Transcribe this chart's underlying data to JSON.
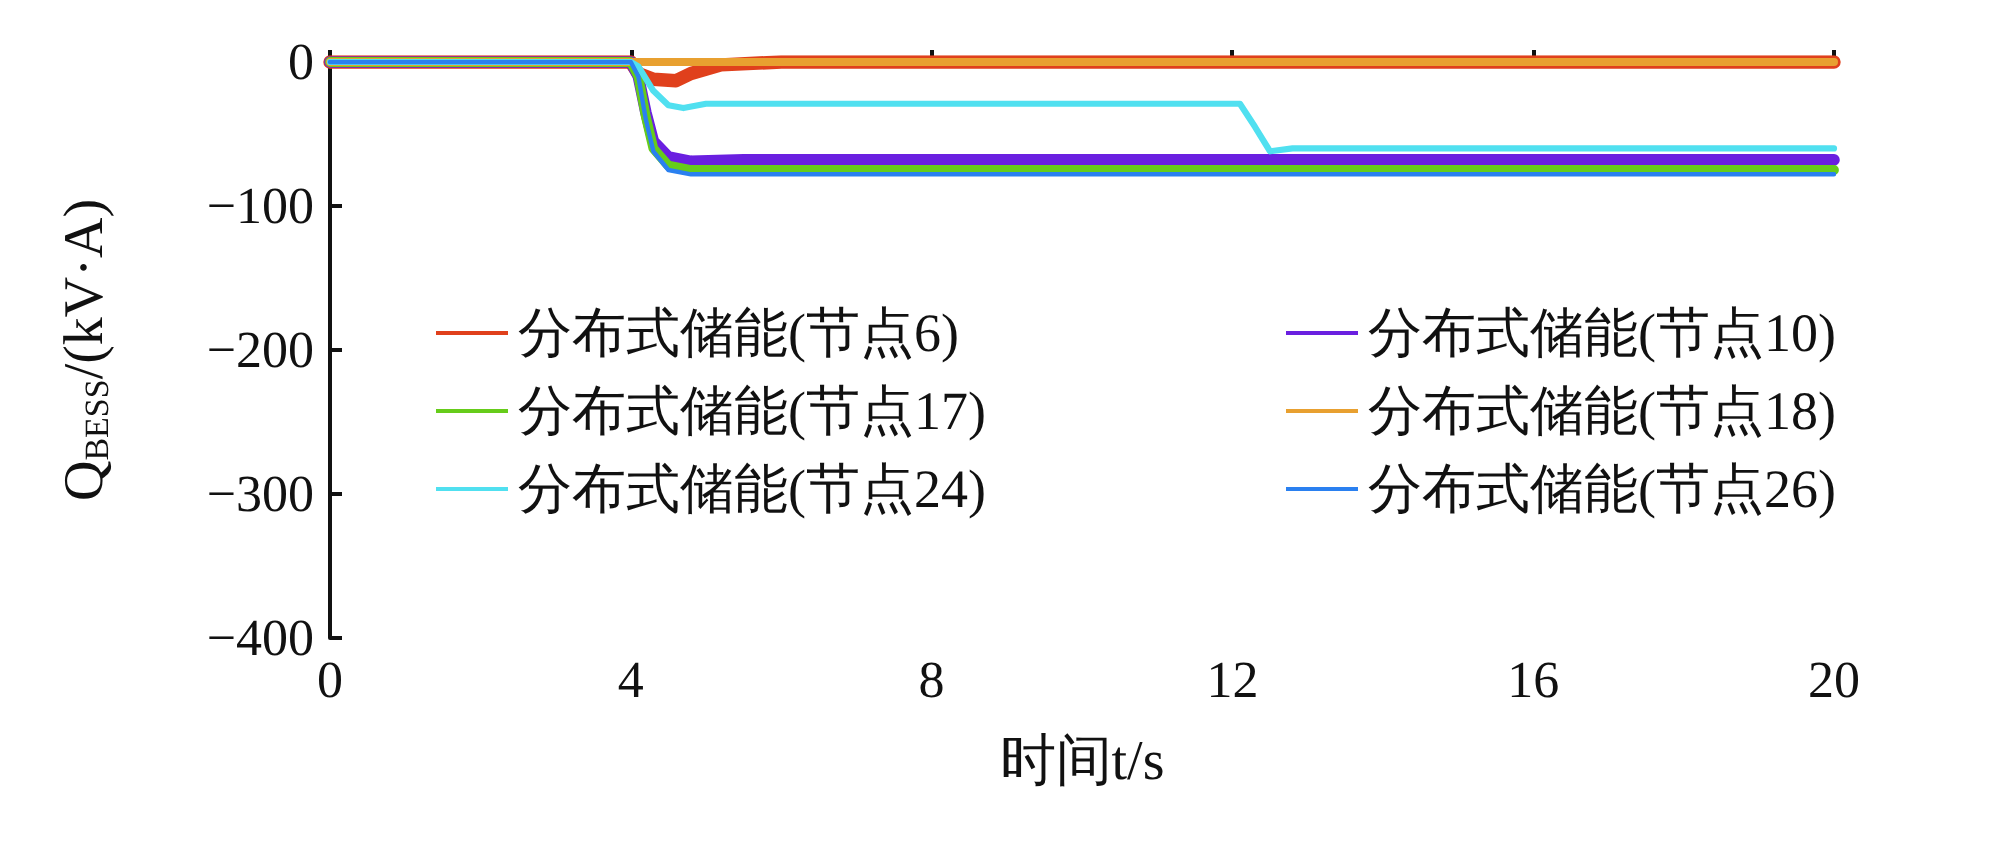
{
  "chart_data": {
    "type": "line",
    "xlabel": "时间t/s",
    "ylabel": "Q$_{BESS}$/(kV·A)",
    "xlim": [
      0,
      20
    ],
    "xticks": [
      0,
      4,
      8,
      12,
      16,
      20
    ],
    "ylim": [
      -400,
      0
    ],
    "yticks": [
      0,
      -100,
      -200,
      -300,
      -400
    ],
    "grid": false,
    "legend": "center",
    "marker": "none",
    "line_style": "solid",
    "series": [
      {
        "name": "分布式储能(节点6)",
        "color": "#e0401c",
        "x": [
          0,
          4,
          4.1,
          4.3,
          4.6,
          4.8,
          5.2,
          6,
          20
        ],
        "values": [
          0,
          0,
          -8,
          -12,
          -13,
          -8,
          -2,
          0,
          0
        ]
      },
      {
        "name": "分布式储能(节点10)",
        "color": "#6a1fe0",
        "x": [
          0,
          4,
          4.1,
          4.2,
          4.3,
          4.5,
          4.8,
          5.5,
          20
        ],
        "values": [
          0,
          0,
          -10,
          -35,
          -55,
          -66,
          -69,
          -68,
          -68
        ]
      },
      {
        "name": "分布式储能(节点17)",
        "color": "#66cc1a",
        "x": [
          0,
          4,
          4.1,
          4.2,
          4.3,
          4.5,
          4.8,
          5.5,
          20
        ],
        "values": [
          0,
          0,
          -10,
          -38,
          -60,
          -72,
          -75,
          -75,
          -75
        ]
      },
      {
        "name": "分布式储能(节点18)",
        "color": "#e8a030",
        "x": [
          0,
          20
        ],
        "values": [
          0,
          0
        ]
      },
      {
        "name": "分布式储能(节点24)",
        "color": "#50e0f0",
        "x": [
          0,
          4,
          4.1,
          4.3,
          4.5,
          4.7,
          5,
          12.1,
          12.3,
          12.5,
          12.8,
          13.5,
          20
        ],
        "values": [
          0,
          0,
          -3,
          -20,
          -30,
          -32,
          -29,
          -29,
          -45,
          -62,
          -60,
          -60,
          -60
        ]
      },
      {
        "name": "分布式储能(节点26)",
        "color": "#2a80f0",
        "x": [
          0,
          4,
          4.1,
          4.2,
          4.3,
          4.5,
          4.8,
          5.5,
          20
        ],
        "values": [
          0,
          0,
          -10,
          -40,
          -62,
          -75,
          -78,
          -78,
          -78
        ]
      }
    ]
  }
}
